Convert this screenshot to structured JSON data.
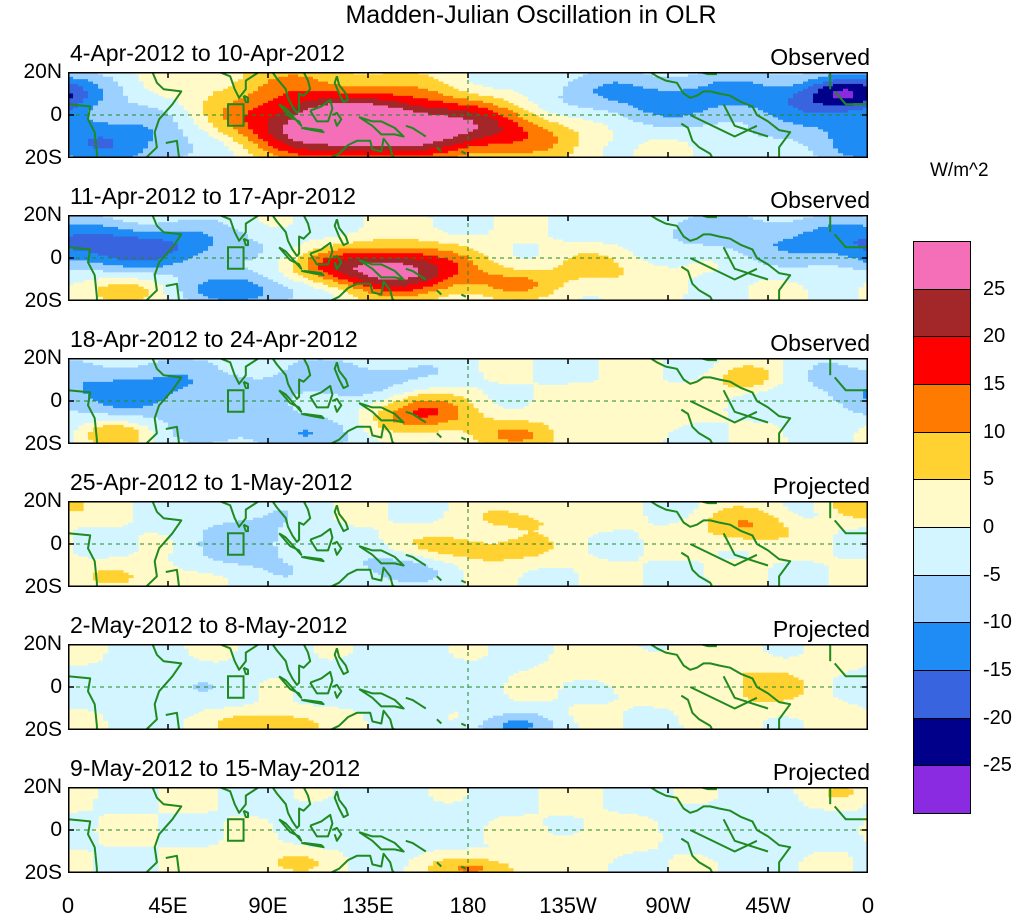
{
  "chart_data": {
    "type": "heatmap",
    "title": "Madden-Julian Oscillation in OLR",
    "units": "W/m^2",
    "y_ticks": [
      "20N",
      "0",
      "20S"
    ],
    "x_ticks": [
      "0",
      "45E",
      "90E",
      "135E",
      "180",
      "135W",
      "90W",
      "45W",
      "0"
    ],
    "colorbar": {
      "labels": [
        "25",
        "20",
        "15",
        "10",
        "5",
        "0",
        "-5",
        "-10",
        "-15",
        "-20",
        "-25"
      ],
      "colors": [
        "#f46fb8",
        "#a32728",
        "#ff0000",
        "#ff7a00",
        "#ffd232",
        "#fffac8",
        "#d2f5ff",
        "#9bd0ff",
        "#1f8cf5",
        "#3964df",
        "#00008a",
        "#8a2be2"
      ]
    },
    "panels": [
      {
        "date": "4-Apr-2012 to 10-Apr-2012",
        "status": "Observed",
        "features": [
          {
            "lon": 150,
            "lat": -5,
            "a": 27,
            "w": 45,
            "h": 10
          },
          {
            "lon": 115,
            "lat": -8,
            "a": 14,
            "w": 30,
            "h": 10
          },
          {
            "lon": 100,
            "lat": 12,
            "a": 8,
            "w": 40,
            "h": 12
          },
          {
            "lon": 20,
            "lat": -12,
            "a": -14,
            "w": 40,
            "h": 10
          },
          {
            "lon": 300,
            "lat": 8,
            "a": -11,
            "w": 60,
            "h": 9
          },
          {
            "lon": 350,
            "lat": 10,
            "a": -17,
            "w": 15,
            "h": 6
          },
          {
            "lon": 200,
            "lat": -10,
            "a": 5,
            "w": 25,
            "h": 8
          },
          {
            "lon": 240,
            "lat": 5,
            "a": -5,
            "w": 30,
            "h": 10
          }
        ]
      },
      {
        "date": "11-Apr-2012 to 17-Apr-2012",
        "status": "Observed",
        "features": [
          {
            "lon": 150,
            "lat": -6,
            "a": 25,
            "w": 22,
            "h": 8
          },
          {
            "lon": 120,
            "lat": -4,
            "a": 10,
            "w": 22,
            "h": 6
          },
          {
            "lon": 25,
            "lat": 5,
            "a": -18,
            "w": 40,
            "h": 8
          },
          {
            "lon": 80,
            "lat": -15,
            "a": -14,
            "w": 20,
            "h": 6
          },
          {
            "lon": 200,
            "lat": -12,
            "a": 9,
            "w": 15,
            "h": 5
          },
          {
            "lon": 240,
            "lat": -5,
            "a": 6,
            "w": 20,
            "h": 8
          },
          {
            "lon": 300,
            "lat": 12,
            "a": -7,
            "w": 40,
            "h": 8
          },
          {
            "lon": 20,
            "lat": -15,
            "a": 8,
            "w": 15,
            "h": 5
          }
        ]
      },
      {
        "date": "18-Apr-2012 to 24-Apr-2012",
        "status": "Observed",
        "features": [
          {
            "lon": 158,
            "lat": -6,
            "a": 17,
            "w": 18,
            "h": 7
          },
          {
            "lon": 30,
            "lat": 5,
            "a": -12,
            "w": 45,
            "h": 10
          },
          {
            "lon": 100,
            "lat": -15,
            "a": -8,
            "w": 35,
            "h": 8
          },
          {
            "lon": 205,
            "lat": -16,
            "a": 10,
            "w": 15,
            "h": 5
          },
          {
            "lon": 255,
            "lat": -4,
            "a": 6,
            "w": 20,
            "h": 6
          },
          {
            "lon": 305,
            "lat": 10,
            "a": 9,
            "w": 12,
            "h": 5
          },
          {
            "lon": 135,
            "lat": 10,
            "a": -8,
            "w": 25,
            "h": 8
          },
          {
            "lon": 20,
            "lat": -15,
            "a": 10,
            "w": 12,
            "h": 5
          }
        ]
      },
      {
        "date": "25-Apr-2012 to 1-May-2012",
        "status": "Projected",
        "features": [
          {
            "lon": 180,
            "lat": -3,
            "a": 9,
            "w": 25,
            "h": 6
          },
          {
            "lon": 150,
            "lat": -10,
            "a": -9,
            "w": 20,
            "h": 6
          },
          {
            "lon": 80,
            "lat": 0,
            "a": -8,
            "w": 20,
            "h": 14
          },
          {
            "lon": 305,
            "lat": 8,
            "a": 10,
            "w": 15,
            "h": 6
          },
          {
            "lon": 210,
            "lat": 12,
            "a": 6,
            "w": 20,
            "h": 5
          },
          {
            "lon": 355,
            "lat": 18,
            "a": 8,
            "w": 10,
            "h": 4
          },
          {
            "lon": 35,
            "lat": -15,
            "a": 5,
            "w": 25,
            "h": 5
          }
        ]
      },
      {
        "date": "2-May-2012 to 8-May-2012",
        "status": "Projected",
        "features": [
          {
            "lon": 90,
            "lat": -18,
            "a": 12,
            "w": 15,
            "h": 5
          },
          {
            "lon": 200,
            "lat": -18,
            "a": -10,
            "w": 15,
            "h": 4
          },
          {
            "lon": 310,
            "lat": 0,
            "a": 6,
            "w": 25,
            "h": 10
          },
          {
            "lon": 150,
            "lat": 5,
            "a": -4,
            "w": 30,
            "h": 10
          },
          {
            "lon": 250,
            "lat": 10,
            "a": 4,
            "w": 25,
            "h": 6
          },
          {
            "lon": 40,
            "lat": 0,
            "a": -4,
            "w": 30,
            "h": 10
          }
        ]
      },
      {
        "date": "9-May-2012 to 15-May-2012",
        "status": "Projected",
        "features": [
          {
            "lon": 185,
            "lat": -18,
            "a": 11,
            "w": 15,
            "h": 4
          },
          {
            "lon": 95,
            "lat": -15,
            "a": 6,
            "w": 15,
            "h": 5
          },
          {
            "lon": 140,
            "lat": 5,
            "a": -4,
            "w": 30,
            "h": 10
          },
          {
            "lon": 300,
            "lat": 0,
            "a": -3,
            "w": 30,
            "h": 12
          },
          {
            "lon": 350,
            "lat": 18,
            "a": 5,
            "w": 10,
            "h": 4
          },
          {
            "lon": 240,
            "lat": -5,
            "a": 3,
            "w": 20,
            "h": 8
          }
        ]
      }
    ]
  }
}
